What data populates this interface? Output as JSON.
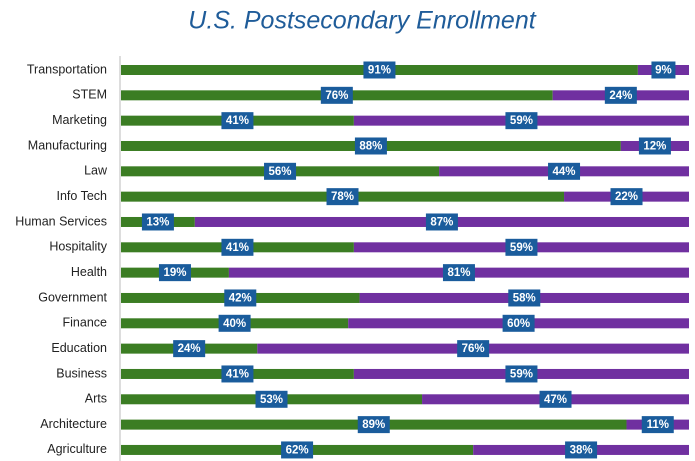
{
  "chart_data": {
    "type": "stacked_bar_horizontal",
    "title": "U.S. Postsecondary Enrollment",
    "categories": [
      "Transportation",
      "STEM",
      "Marketing",
      "Manufacturing",
      "Law",
      "Info Tech",
      "Human Services",
      "Hospitality",
      "Health",
      "Government",
      "Finance",
      "Education",
      "Business",
      "Arts",
      "Architecture",
      "Agriculture"
    ],
    "series": [
      {
        "color": "#3b7d23",
        "values": [
          91,
          76,
          41,
          88,
          56,
          78,
          13,
          41,
          19,
          42,
          40,
          24,
          41,
          53,
          89,
          62
        ],
        "value_labels": [
          "91%",
          "76%",
          "41%",
          "88%",
          "56%",
          "78%",
          "13%",
          "41%",
          "19%",
          "42%",
          "40%",
          "24%",
          "41%",
          "53%",
          "89%",
          "62%"
        ]
      },
      {
        "color": "#7030a0",
        "values": [
          9,
          24,
          59,
          12,
          44,
          22,
          87,
          59,
          81,
          58,
          60,
          76,
          59,
          47,
          11,
          38
        ],
        "value_labels": [
          "9%",
          "24%",
          "59%",
          "12%",
          "44%",
          "22%",
          "87%",
          "59%",
          "81%",
          "58%",
          "60%",
          "76%",
          "59%",
          "47%",
          "11%",
          "38%"
        ]
      }
    ],
    "xlim": [
      0,
      100
    ]
  }
}
